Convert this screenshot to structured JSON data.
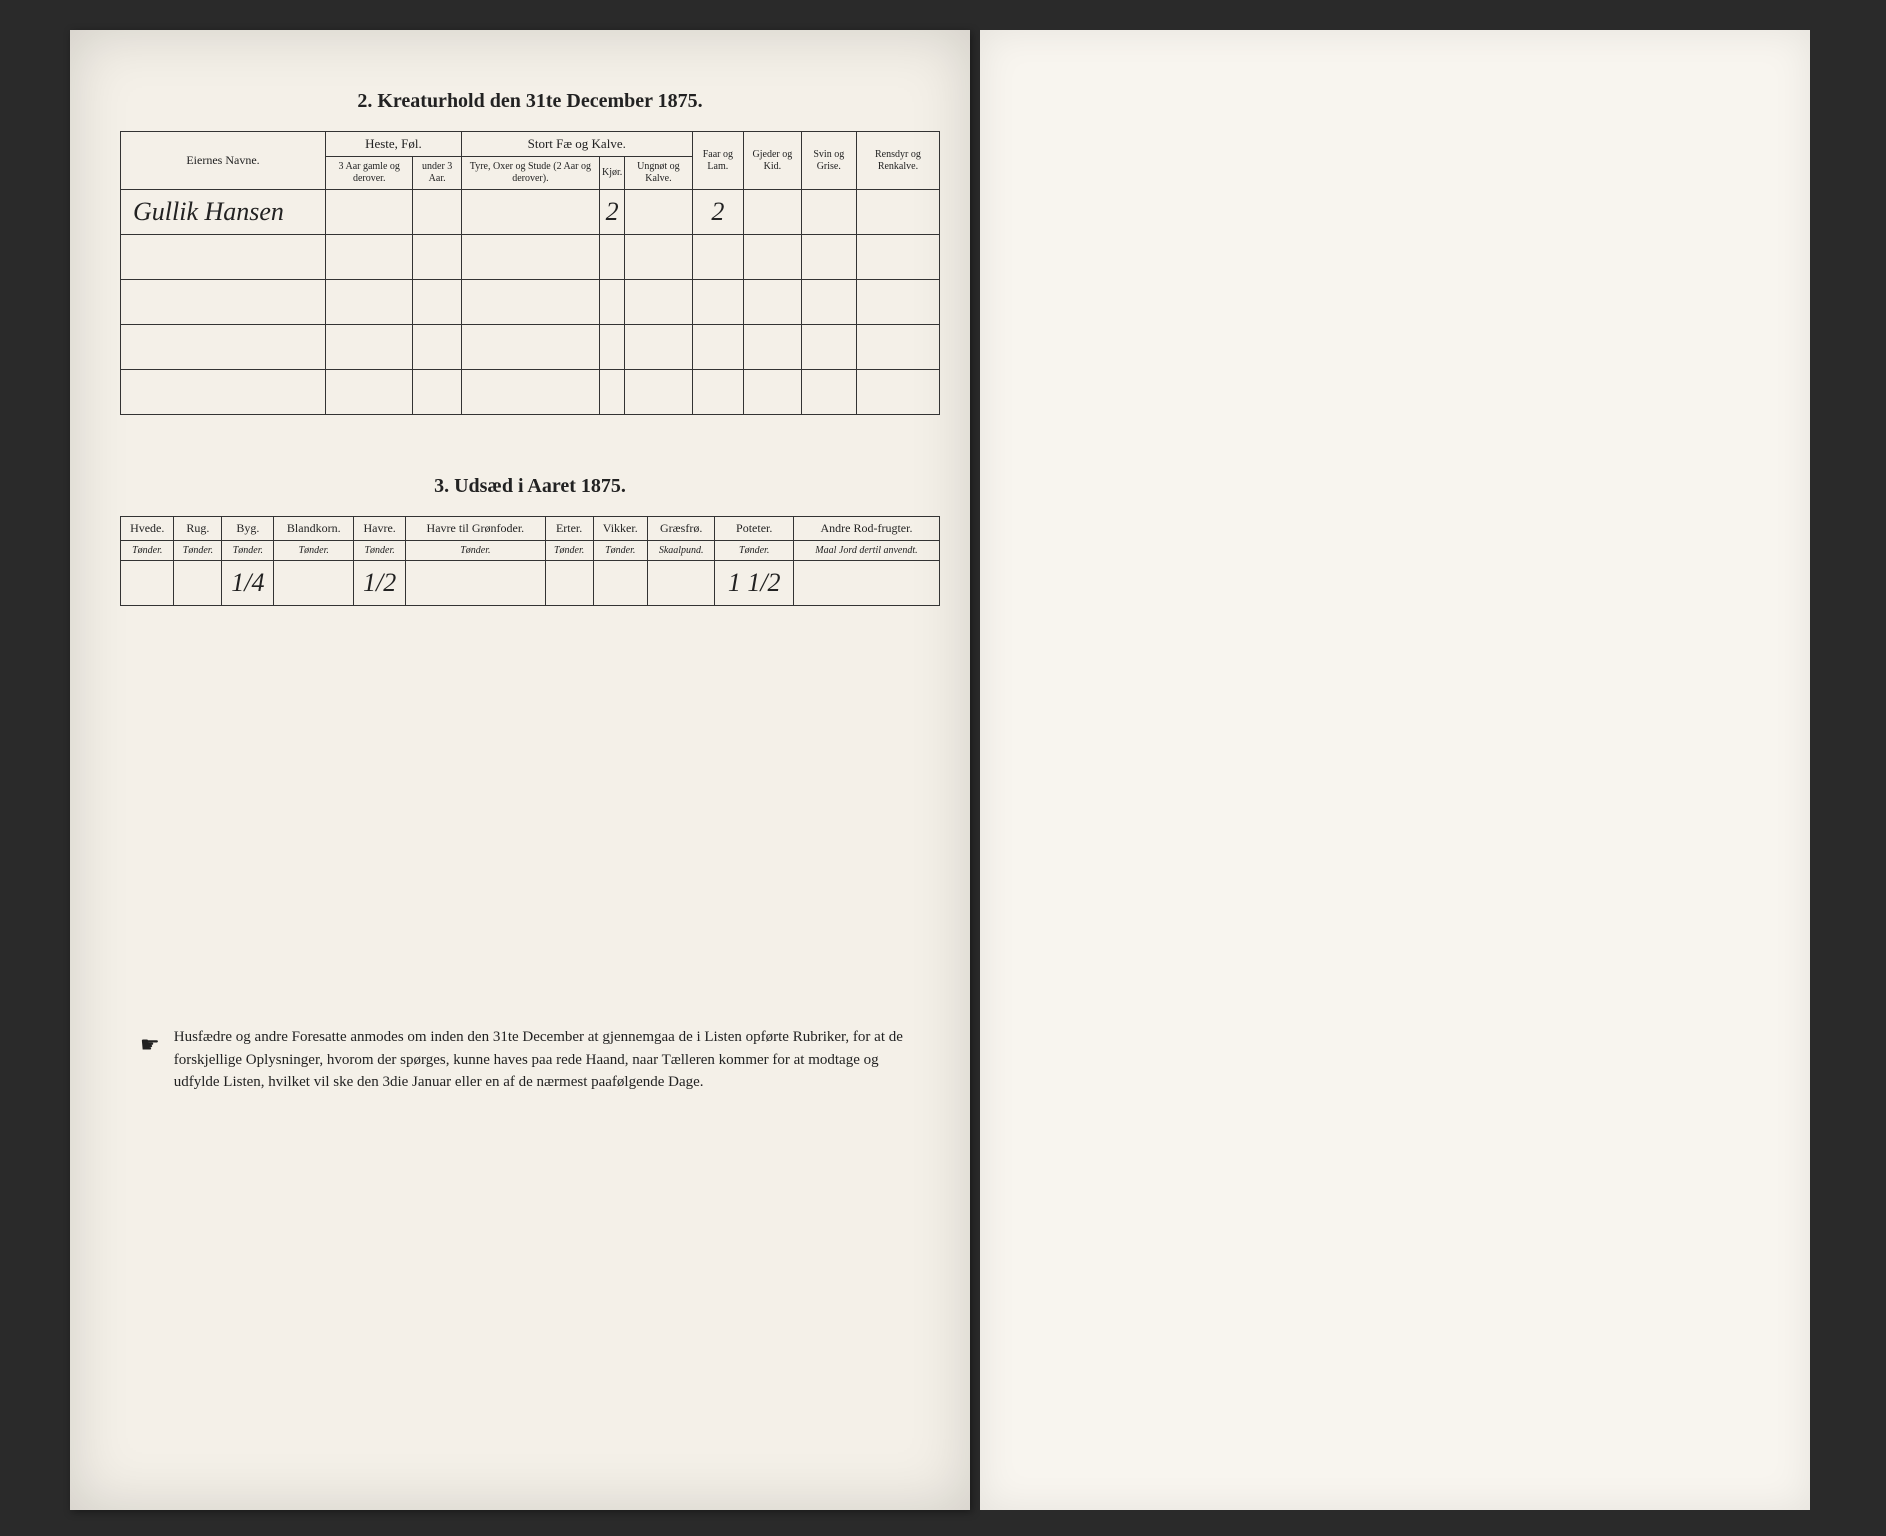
{
  "section2": {
    "title": "2.  Kreaturhold den 31te December 1875.",
    "headers": {
      "owner": "Eiernes Navne.",
      "heste_group": "Heste, Føl.",
      "heste_sub1": "3 Aar gamle og derover.",
      "heste_sub2": "under 3 Aar.",
      "stort_group": "Stort Fæ og Kalve.",
      "stort_sub1": "Tyre, Oxer og Stude (2 Aar og derover).",
      "stort_sub2": "Kjør.",
      "stort_sub3": "Ungnøt og Kalve.",
      "faar": "Faar og Lam.",
      "gjeder": "Gjeder og Kid.",
      "svin": "Svin og Grise.",
      "rensdyr": "Rensdyr og Renkalve."
    },
    "row": {
      "owner": "Gullik Hansen",
      "kjor": "2",
      "faar": "2"
    }
  },
  "section3": {
    "title": "3.  Udsæd i Aaret 1875.",
    "headers": {
      "hvede": "Hvede.",
      "rug": "Rug.",
      "byg": "Byg.",
      "blandkorn": "Blandkorn.",
      "havre": "Havre.",
      "havre_gron": "Havre til Grønfoder.",
      "erter": "Erter.",
      "vikker": "Vikker.",
      "graesfroe": "Græsfrø.",
      "poteter": "Poteter.",
      "andre": "Andre Rod-frugter.",
      "tonder": "Tønder.",
      "skaalpund": "Skaalpund.",
      "maal": "Maal Jord dertil anvendt."
    },
    "row": {
      "byg": "1/4",
      "havre": "1/2",
      "poteter": "1 1/2"
    }
  },
  "footer": {
    "text": "Husfædre og andre Foresatte anmodes om inden den 31te December at gjennemgaa de i Listen opførte Rubriker, for at de forskjellige Oplysninger, hvorom der spørges, kunne haves paa rede Haand, naar Tælleren kommer for at modtage og udfylde Listen, hvilket vil ske den 3die Januar eller en af de nærmest paafølgende Dage."
  }
}
